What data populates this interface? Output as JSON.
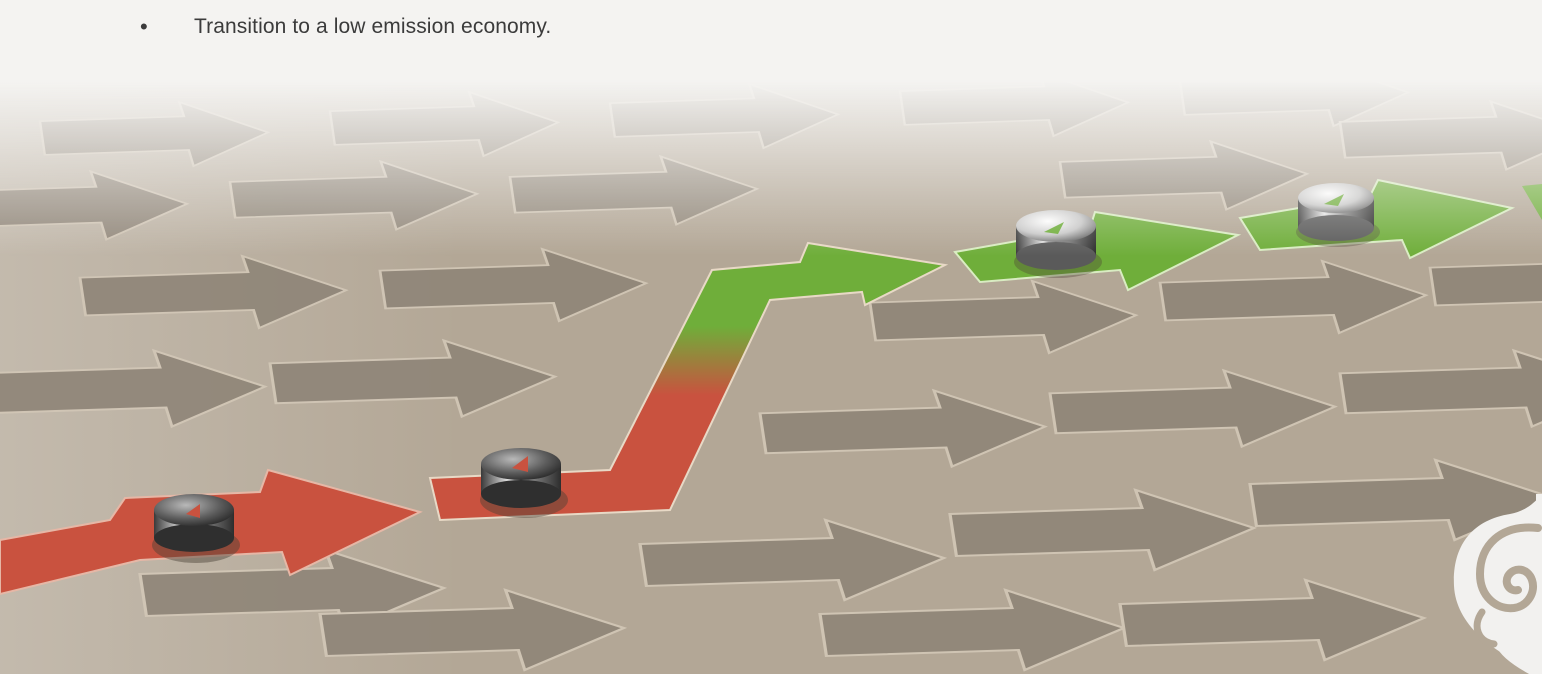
{
  "bullets": [
    {
      "text": "Transition to a low emission economy."
    }
  ],
  "image": {
    "subject": "arrows-pattern-with-emission-path",
    "path_colors": {
      "low": "#c9523f",
      "high": "#6fae3a"
    },
    "surface_color": "#b7aa99",
    "logo_icon": "koru-swirl-icon"
  }
}
